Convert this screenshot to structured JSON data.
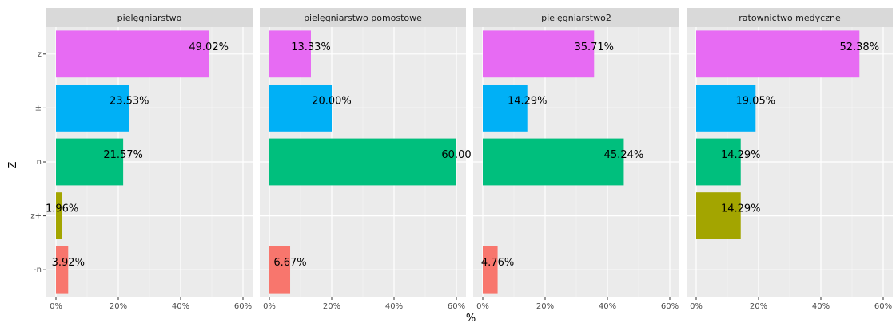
{
  "chart_data": {
    "type": "bar",
    "orientation": "horizontal",
    "title": "",
    "xlabel": "%",
    "ylabel": "Z",
    "xlim": [
      0,
      60
    ],
    "xticks": [
      "0%",
      "20%",
      "40%",
      "60%"
    ],
    "categories": [
      "z",
      "±",
      "n",
      "z+",
      "-n"
    ],
    "category_colors": {
      "z": "#E76BF3",
      "±": "#00B0F6",
      "n": "#00BF7D",
      "z+": "#A3A500",
      "-n": "#F8766D"
    },
    "grid": true,
    "panel_background": "#EBEBEB",
    "strip_background": "#D9D9D9",
    "facets": [
      {
        "name": "pielęgniarstwo",
        "values": [
          {
            "category": "z",
            "value": 49.02,
            "label": "49.02%"
          },
          {
            "category": "±",
            "value": 23.53,
            "label": "23.53%"
          },
          {
            "category": "n",
            "value": 21.57,
            "label": "21.57%"
          },
          {
            "category": "z+",
            "value": 1.96,
            "label": "1.96%"
          },
          {
            "category": "-n",
            "value": 3.92,
            "label": "3.92%"
          }
        ]
      },
      {
        "name": "pielęgniarstwo pomostowe",
        "values": [
          {
            "category": "z",
            "value": 13.33,
            "label": "13.33%"
          },
          {
            "category": "±",
            "value": 20.0,
            "label": "20.00%"
          },
          {
            "category": "n",
            "value": 60.0,
            "label": "60.00"
          },
          {
            "category": "-n",
            "value": 6.67,
            "label": "6.67%"
          }
        ]
      },
      {
        "name": "pielęgniarstwo2",
        "values": [
          {
            "category": "z",
            "value": 35.71,
            "label": "35.71%"
          },
          {
            "category": "±",
            "value": 14.29,
            "label": "14.29%"
          },
          {
            "category": "n",
            "value": 45.24,
            "label": "45.24%"
          },
          {
            "category": "-n",
            "value": 4.76,
            "label": "4.76%"
          }
        ]
      },
      {
        "name": "ratownictwo medyczne",
        "values": [
          {
            "category": "z",
            "value": 52.38,
            "label": "52.38%"
          },
          {
            "category": "±",
            "value": 19.05,
            "label": "19.05%"
          },
          {
            "category": "n",
            "value": 14.29,
            "label": "14.29%"
          },
          {
            "category": "z+",
            "value": 14.29,
            "label": "14.29%"
          }
        ]
      }
    ]
  }
}
